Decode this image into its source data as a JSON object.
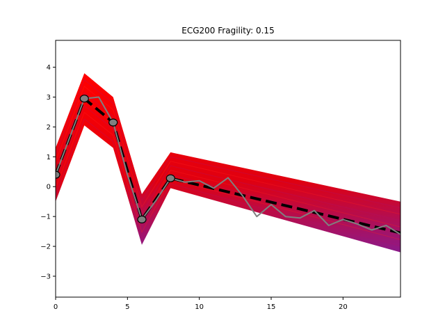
{
  "chart_data": {
    "type": "line",
    "title": "ECG200 Fragility: 0.15",
    "xlabel": "",
    "ylabel": "",
    "xlim": [
      0,
      24
    ],
    "ylim": [
      -3.7,
      4.9
    ],
    "x_ticks": [
      0,
      5,
      10,
      15,
      20
    ],
    "y_ticks": [
      -3,
      -2,
      -1,
      0,
      1,
      2,
      3,
      4
    ],
    "grid": false,
    "band": {
      "description_color_from": "#ff0000",
      "description_color_to": "#8b1a8b",
      "x": [
        0,
        2,
        4,
        6,
        8,
        24
      ],
      "upper": [
        1.3,
        3.8,
        3.0,
        -0.25,
        1.15,
        -0.5
      ],
      "lower": [
        -0.5,
        2.05,
        1.3,
        -1.95,
        -0.05,
        -2.2
      ]
    },
    "series": [
      {
        "style": "dashed",
        "color": "#000000",
        "x": [
          0,
          2,
          4,
          6,
          8,
          24
        ],
        "values": [
          0.4,
          2.95,
          2.15,
          -1.1,
          0.28,
          -1.55
        ]
      },
      {
        "style": "solid",
        "color": "#808080",
        "x": [
          0,
          2,
          3,
          4,
          5,
          6,
          7,
          8,
          9,
          10,
          11,
          12,
          13,
          14,
          15,
          16,
          17,
          18,
          19,
          20,
          21,
          22,
          23,
          24
        ],
        "values": [
          0.4,
          2.95,
          3.0,
          2.15,
          0.4,
          -1.1,
          -0.45,
          0.28,
          0.15,
          0.2,
          -0.05,
          0.3,
          -0.3,
          -1.0,
          -0.6,
          -1.0,
          -1.05,
          -0.8,
          -1.3,
          -1.1,
          -1.25,
          -1.45,
          -1.3,
          -1.6
        ]
      }
    ],
    "markers": {
      "x": [
        0,
        2,
        4,
        6,
        8
      ],
      "values": [
        0.4,
        2.95,
        2.15,
        -1.1,
        0.28
      ],
      "fill": "#808080",
      "edge": "#000000"
    }
  }
}
